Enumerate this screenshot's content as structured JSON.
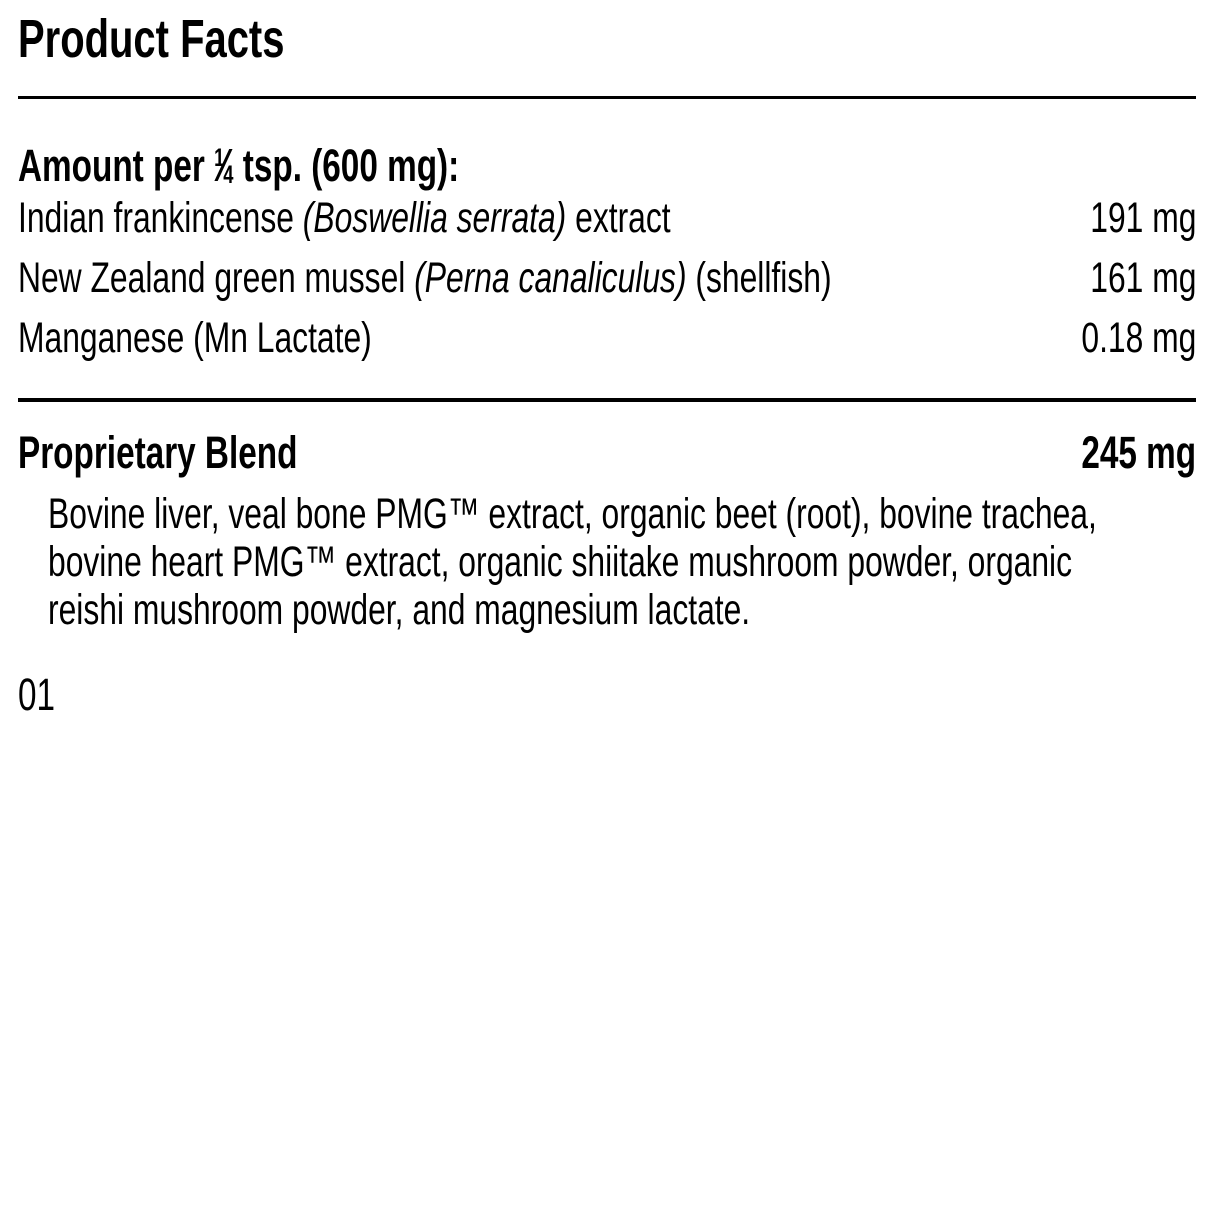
{
  "title": "Product Facts",
  "serving": {
    "prefix": "Amount per ",
    "fraction": {
      "numerator": "1",
      "slash": "⁄",
      "denominator": "4"
    },
    "suffix": " tsp. (600 mg):"
  },
  "ingredients": [
    {
      "prefix": "Indian frankincense ",
      "latin": "(Boswellia serrata)",
      "suffix": " extract",
      "amount": "191 mg"
    },
    {
      "prefix": "New Zealand green mussel ",
      "latin": "(Perna canaliculus)",
      "suffix": " (shellfish)",
      "amount": "161 mg"
    },
    {
      "prefix": "Manganese (Mn Lactate)",
      "latin": "",
      "suffix": "",
      "amount": "0.18 mg"
    }
  ],
  "proprietary_blend": {
    "label": "Proprietary Blend",
    "amount": "245 mg",
    "description_lines": [
      "Bovine liver, veal bone PMG™ extract, organic beet (root), bovine trachea,",
      "bovine heart PMG™ extract, organic shiitake mushroom powder, organic",
      "reishi mushroom powder, and magnesium lactate."
    ]
  },
  "footnote": "01",
  "colors": {
    "text": "#000000",
    "background": "#ffffff",
    "divider": "#000000"
  }
}
